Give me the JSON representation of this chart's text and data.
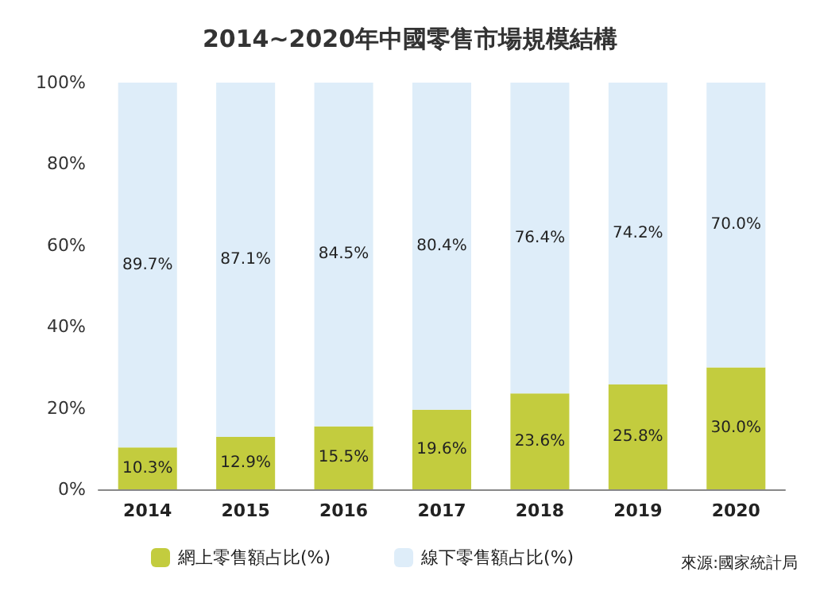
{
  "chart_data": {
    "type": "bar",
    "title": "2014~2020年中國零售市場規模結構",
    "categories": [
      "2014",
      "2015",
      "2016",
      "2017",
      "2018",
      "2019",
      "2020"
    ],
    "stacked": true,
    "series": [
      {
        "name": "網上零售額占比(%)",
        "color": "#c3cc3e",
        "values": [
          10.3,
          12.9,
          15.5,
          19.6,
          23.6,
          25.8,
          30.0
        ],
        "value_labels": [
          "10.3%",
          "12.9%",
          "15.5%",
          "19.6%",
          "23.6%",
          "25.8%",
          "30.0%"
        ]
      },
      {
        "name": "線下零售額占比(%)",
        "color": "#deedf9",
        "values": [
          89.7,
          87.1,
          84.5,
          80.4,
          76.4,
          74.2,
          70.0
        ],
        "value_labels": [
          "89.7%",
          "87.1%",
          "84.5%",
          "80.4%",
          "76.4%",
          "74.2%",
          "70.0%"
        ]
      }
    ],
    "ylim": [
      0,
      100
    ],
    "yticks": [
      {
        "value": 0,
        "label": "0%"
      },
      {
        "value": 20,
        "label": "20%"
      },
      {
        "value": 40,
        "label": "40%"
      },
      {
        "value": 60,
        "label": "60%"
      },
      {
        "value": 80,
        "label": "80%"
      },
      {
        "value": 100,
        "label": "100%"
      }
    ],
    "grid": false,
    "legend": "bottom",
    "annotations": [
      "來源:國家統計局"
    ]
  }
}
